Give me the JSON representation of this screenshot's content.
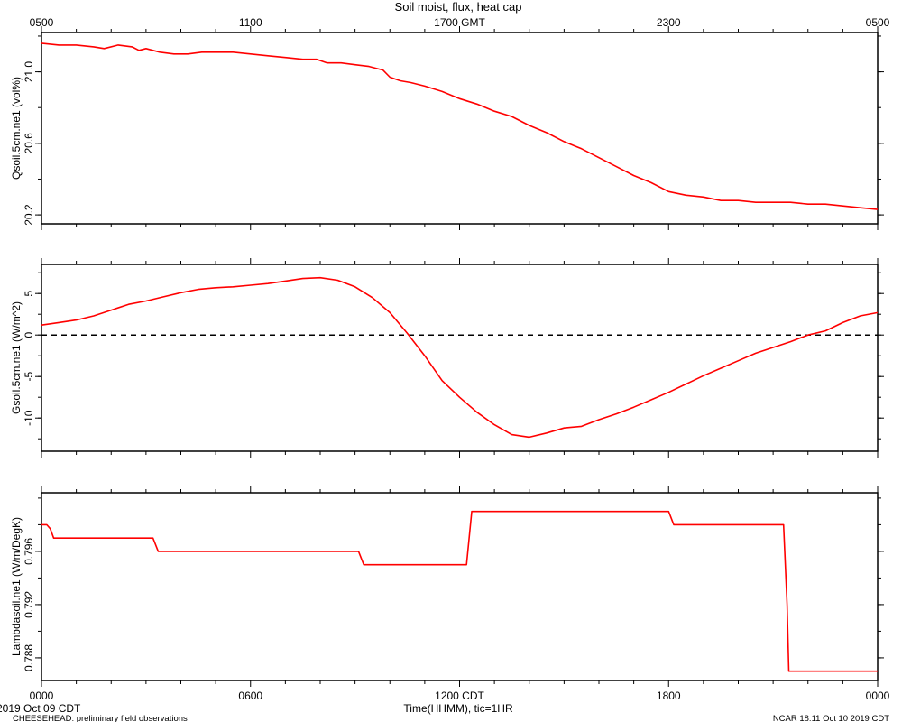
{
  "title": "Soil moist, flux, heat cap",
  "top_axis": {
    "ticks": [
      {
        "h": 0,
        "label": "0500"
      },
      {
        "h": 6,
        "label": "1100"
      },
      {
        "h": 12,
        "label": "1700 GMT"
      },
      {
        "h": 18,
        "label": "2300"
      },
      {
        "h": 24,
        "label": "0500"
      }
    ]
  },
  "bottom_axis": {
    "ticks": [
      {
        "h": 0,
        "label": "0000"
      },
      {
        "h": 6,
        "label": "0600"
      },
      {
        "h": 12,
        "label": "1200 CDT"
      },
      {
        "h": 18,
        "label": "1800"
      },
      {
        "h": 24,
        "label": "0000"
      }
    ],
    "label": "Time(HHMM), tic=1HR"
  },
  "footer": {
    "date": "2019 Oct 09 CDT",
    "project": "CHEESEHEAD: preliminary field observations",
    "stamp": "NCAR 18:11 Oct 10 2019 CDT"
  },
  "colors": {
    "series": "#ff0000",
    "axis": "#000000",
    "zero_line": "#000000"
  },
  "chart_data": [
    {
      "type": "line",
      "ylabel": "Qsoil.5cm.ne1  (vol%)",
      "xlim": [
        0,
        24
      ],
      "ylim": [
        20.15,
        21.22
      ],
      "yticks": [
        20.2,
        20.6,
        21.0
      ],
      "yticklabels": [
        "20.2",
        "20.6",
        "21.0"
      ],
      "series": [
        {
          "x": [
            0,
            0.5,
            1,
            1.5,
            1.8,
            2.2,
            2.6,
            2.8,
            3,
            3.4,
            3.8,
            4.2,
            4.6,
            5,
            5.5,
            6,
            6.5,
            7,
            7.5,
            7.9,
            8.2,
            8.6,
            9,
            9.4,
            9.8,
            10,
            10.3,
            10.6,
            11,
            11.5,
            12,
            12.5,
            13,
            13.5,
            14,
            14.5,
            15,
            15.5,
            16,
            16.5,
            17,
            17.5,
            18,
            18.5,
            19,
            19.5,
            20,
            20.5,
            21,
            21.5,
            22,
            22.5,
            23,
            23.5,
            24
          ],
          "y": [
            21.16,
            21.15,
            21.15,
            21.14,
            21.13,
            21.15,
            21.14,
            21.12,
            21.13,
            21.11,
            21.1,
            21.1,
            21.11,
            21.11,
            21.11,
            21.1,
            21.09,
            21.08,
            21.07,
            21.07,
            21.05,
            21.05,
            21.04,
            21.03,
            21.01,
            20.97,
            20.95,
            20.94,
            20.92,
            20.89,
            20.85,
            20.82,
            20.78,
            20.75,
            20.7,
            20.66,
            20.61,
            20.57,
            20.52,
            20.47,
            20.42,
            20.38,
            20.33,
            20.31,
            20.3,
            20.28,
            20.28,
            20.27,
            20.27,
            20.27,
            20.26,
            20.26,
            20.25,
            20.24,
            20.23
          ]
        }
      ]
    },
    {
      "type": "line",
      "ylabel": "Gsoil.5cm.ne1  (W/m^2)",
      "xlim": [
        0,
        24
      ],
      "ylim": [
        -14,
        8.5
      ],
      "yticks": [
        -10,
        -5,
        0,
        5
      ],
      "yticklabels": [
        "-10",
        "-5",
        "0",
        "5"
      ],
      "zero_line": 0,
      "series": [
        {
          "x": [
            0,
            0.5,
            1,
            1.5,
            2,
            2.5,
            3,
            3.5,
            4,
            4.5,
            5,
            5.5,
            6,
            6.5,
            7,
            7.5,
            8,
            8.5,
            9,
            9.5,
            10,
            10.5,
            11,
            11.5,
            12,
            12.5,
            13,
            13.5,
            14,
            14.5,
            15,
            15.5,
            16,
            16.5,
            17,
            17.5,
            18,
            18.5,
            19,
            19.5,
            20,
            20.5,
            21,
            21.5,
            22,
            22.5,
            23,
            23.5,
            24
          ],
          "y": [
            1.2,
            1.5,
            1.8,
            2.3,
            3.0,
            3.7,
            4.1,
            4.6,
            5.1,
            5.5,
            5.7,
            5.8,
            6.0,
            6.2,
            6.5,
            6.8,
            6.9,
            6.6,
            5.8,
            4.5,
            2.7,
            0.2,
            -2.5,
            -5.5,
            -7.5,
            -9.3,
            -10.8,
            -12.0,
            -12.3,
            -11.8,
            -11.2,
            -11.0,
            -10.2,
            -9.5,
            -8.7,
            -7.8,
            -6.9,
            -5.9,
            -4.9,
            -4.0,
            -3.1,
            -2.2,
            -1.5,
            -0.8,
            0.0,
            0.5,
            1.5,
            2.3,
            2.7
          ]
        }
      ]
    },
    {
      "type": "line",
      "ylabel": "Lambdasoil.ne1  (W/m/DegK)",
      "xlim": [
        0,
        24
      ],
      "ylim": [
        0.7863,
        0.8004
      ],
      "yticks": [
        0.788,
        0.792,
        0.796
      ],
      "yticklabels": [
        "0.788",
        "0.792",
        "0.796"
      ],
      "series": [
        {
          "x": [
            0,
            0.15,
            0.25,
            0.35,
            3.2,
            3.35,
            9.1,
            9.25,
            12.2,
            12.35,
            18.0,
            18.15,
            21.3,
            21.4,
            21.45,
            24
          ],
          "y": [
            0.798,
            0.798,
            0.7977,
            0.797,
            0.797,
            0.796,
            0.796,
            0.795,
            0.795,
            0.799,
            0.799,
            0.798,
            0.798,
            0.792,
            0.787,
            0.787
          ]
        }
      ]
    }
  ]
}
